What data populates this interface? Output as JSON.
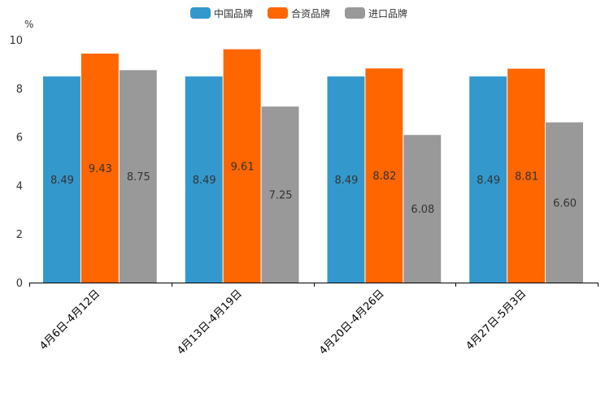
{
  "chart_data": {
    "type": "bar",
    "title": "",
    "ylabel": "%",
    "xlabel": "",
    "ylim": [
      0,
      10
    ],
    "yticks": [
      0,
      2,
      4,
      6,
      8,
      10
    ],
    "categories": [
      "4月6日-4月12日",
      "4月13日-4月19日",
      "4月20日-4月26日",
      "4月27日-5月3日"
    ],
    "series": [
      {
        "name": "中国品牌",
        "color": "#3399cc",
        "values": [
          8.49,
          8.49,
          8.49,
          8.49
        ],
        "labels": [
          "8.49",
          "8.49",
          "8.49",
          "8.49"
        ]
      },
      {
        "name": "合资品牌",
        "color": "#ff6600",
        "values": [
          9.43,
          9.61,
          8.82,
          8.81
        ],
        "labels": [
          "9.43",
          "9.61",
          "8.82",
          "8.81"
        ]
      },
      {
        "name": "进口品牌",
        "color": "#999999",
        "values": [
          8.75,
          7.25,
          6.08,
          6.6
        ],
        "labels": [
          "8.75",
          "7.25",
          "6.08",
          "6.60"
        ]
      }
    ],
    "legend_position": "top-center",
    "grid": false
  }
}
